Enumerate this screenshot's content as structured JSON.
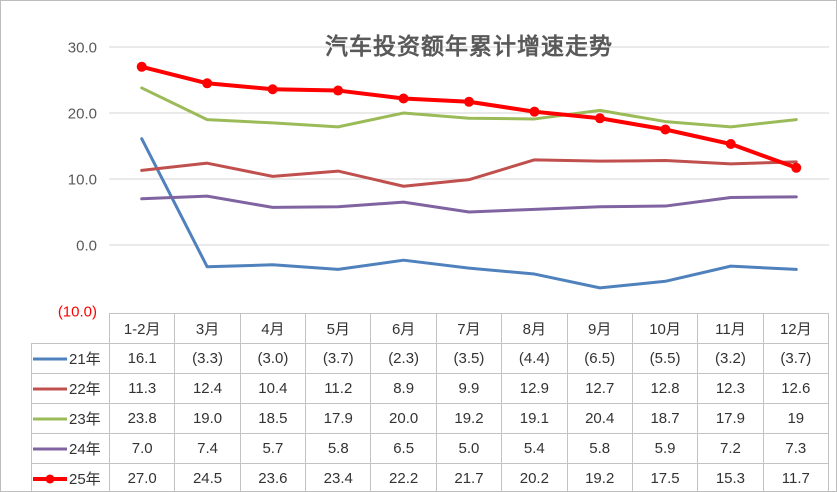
{
  "chart_data": {
    "type": "line",
    "title": "汽车投资额年累计增速走势",
    "xlabel": "",
    "ylabel": "",
    "grid": true,
    "legend_position": "table-left",
    "categories": [
      "1-2月",
      "3月",
      "4月",
      "5月",
      "6月",
      "7月",
      "8月",
      "9月",
      "10月",
      "11月",
      "12月"
    ],
    "y_axis": {
      "min": -10,
      "max": 30,
      "ticks": [
        {
          "label": "30.0",
          "value": 30,
          "color": "#595959"
        },
        {
          "label": "20.0",
          "value": 20,
          "color": "#595959"
        },
        {
          "label": "10.0",
          "value": 10,
          "color": "#595959"
        },
        {
          "label": "0.0",
          "value": 0,
          "color": "#595959"
        },
        {
          "label": "(10.0)",
          "value": -10,
          "color": "#ff0000"
        }
      ]
    },
    "series": [
      {
        "name": "21年",
        "color": "#4F81BD",
        "marker": false,
        "values": [
          16.1,
          -3.3,
          -3.0,
          -3.7,
          -2.3,
          -3.5,
          -4.4,
          -6.5,
          -5.5,
          -3.2,
          -3.7
        ],
        "display": [
          "16.1",
          "(3.3)",
          "(3.0)",
          "(3.7)",
          "(2.3)",
          "(3.5)",
          "(4.4)",
          "(6.5)",
          "(5.5)",
          "(3.2)",
          "(3.7)"
        ]
      },
      {
        "name": "22年",
        "color": "#C0504D",
        "marker": false,
        "values": [
          11.3,
          12.4,
          10.4,
          11.2,
          8.9,
          9.9,
          12.9,
          12.7,
          12.8,
          12.3,
          12.6
        ],
        "display": [
          "11.3",
          "12.4",
          "10.4",
          "11.2",
          "8.9",
          "9.9",
          "12.9",
          "12.7",
          "12.8",
          "12.3",
          "12.6"
        ]
      },
      {
        "name": "23年",
        "color": "#9BBB59",
        "marker": false,
        "values": [
          23.8,
          19.0,
          18.5,
          17.9,
          20.0,
          19.2,
          19.1,
          20.4,
          18.7,
          17.9,
          19
        ],
        "display": [
          "23.8",
          "19.0",
          "18.5",
          "17.9",
          "20.0",
          "19.2",
          "19.1",
          "20.4",
          "18.7",
          "17.9",
          "19"
        ]
      },
      {
        "name": "24年",
        "color": "#8064A2",
        "marker": false,
        "values": [
          7.0,
          7.4,
          5.7,
          5.8,
          6.5,
          5.0,
          5.4,
          5.8,
          5.9,
          7.2,
          7.3
        ],
        "display": [
          "7.0",
          "7.4",
          "5.7",
          "5.8",
          "6.5",
          "5.0",
          "5.4",
          "5.8",
          "5.9",
          "7.2",
          "7.3"
        ]
      },
      {
        "name": "25年",
        "color": "#FF0000",
        "marker": true,
        "values": [
          27.0,
          24.5,
          23.6,
          23.4,
          22.2,
          21.7,
          20.2,
          19.2,
          17.5,
          15.3,
          11.7
        ],
        "display": [
          "27.0",
          "24.5",
          "23.6",
          "23.4",
          "22.2",
          "21.7",
          "20.2",
          "19.2",
          "17.5",
          "15.3",
          "11.7"
        ]
      }
    ]
  }
}
